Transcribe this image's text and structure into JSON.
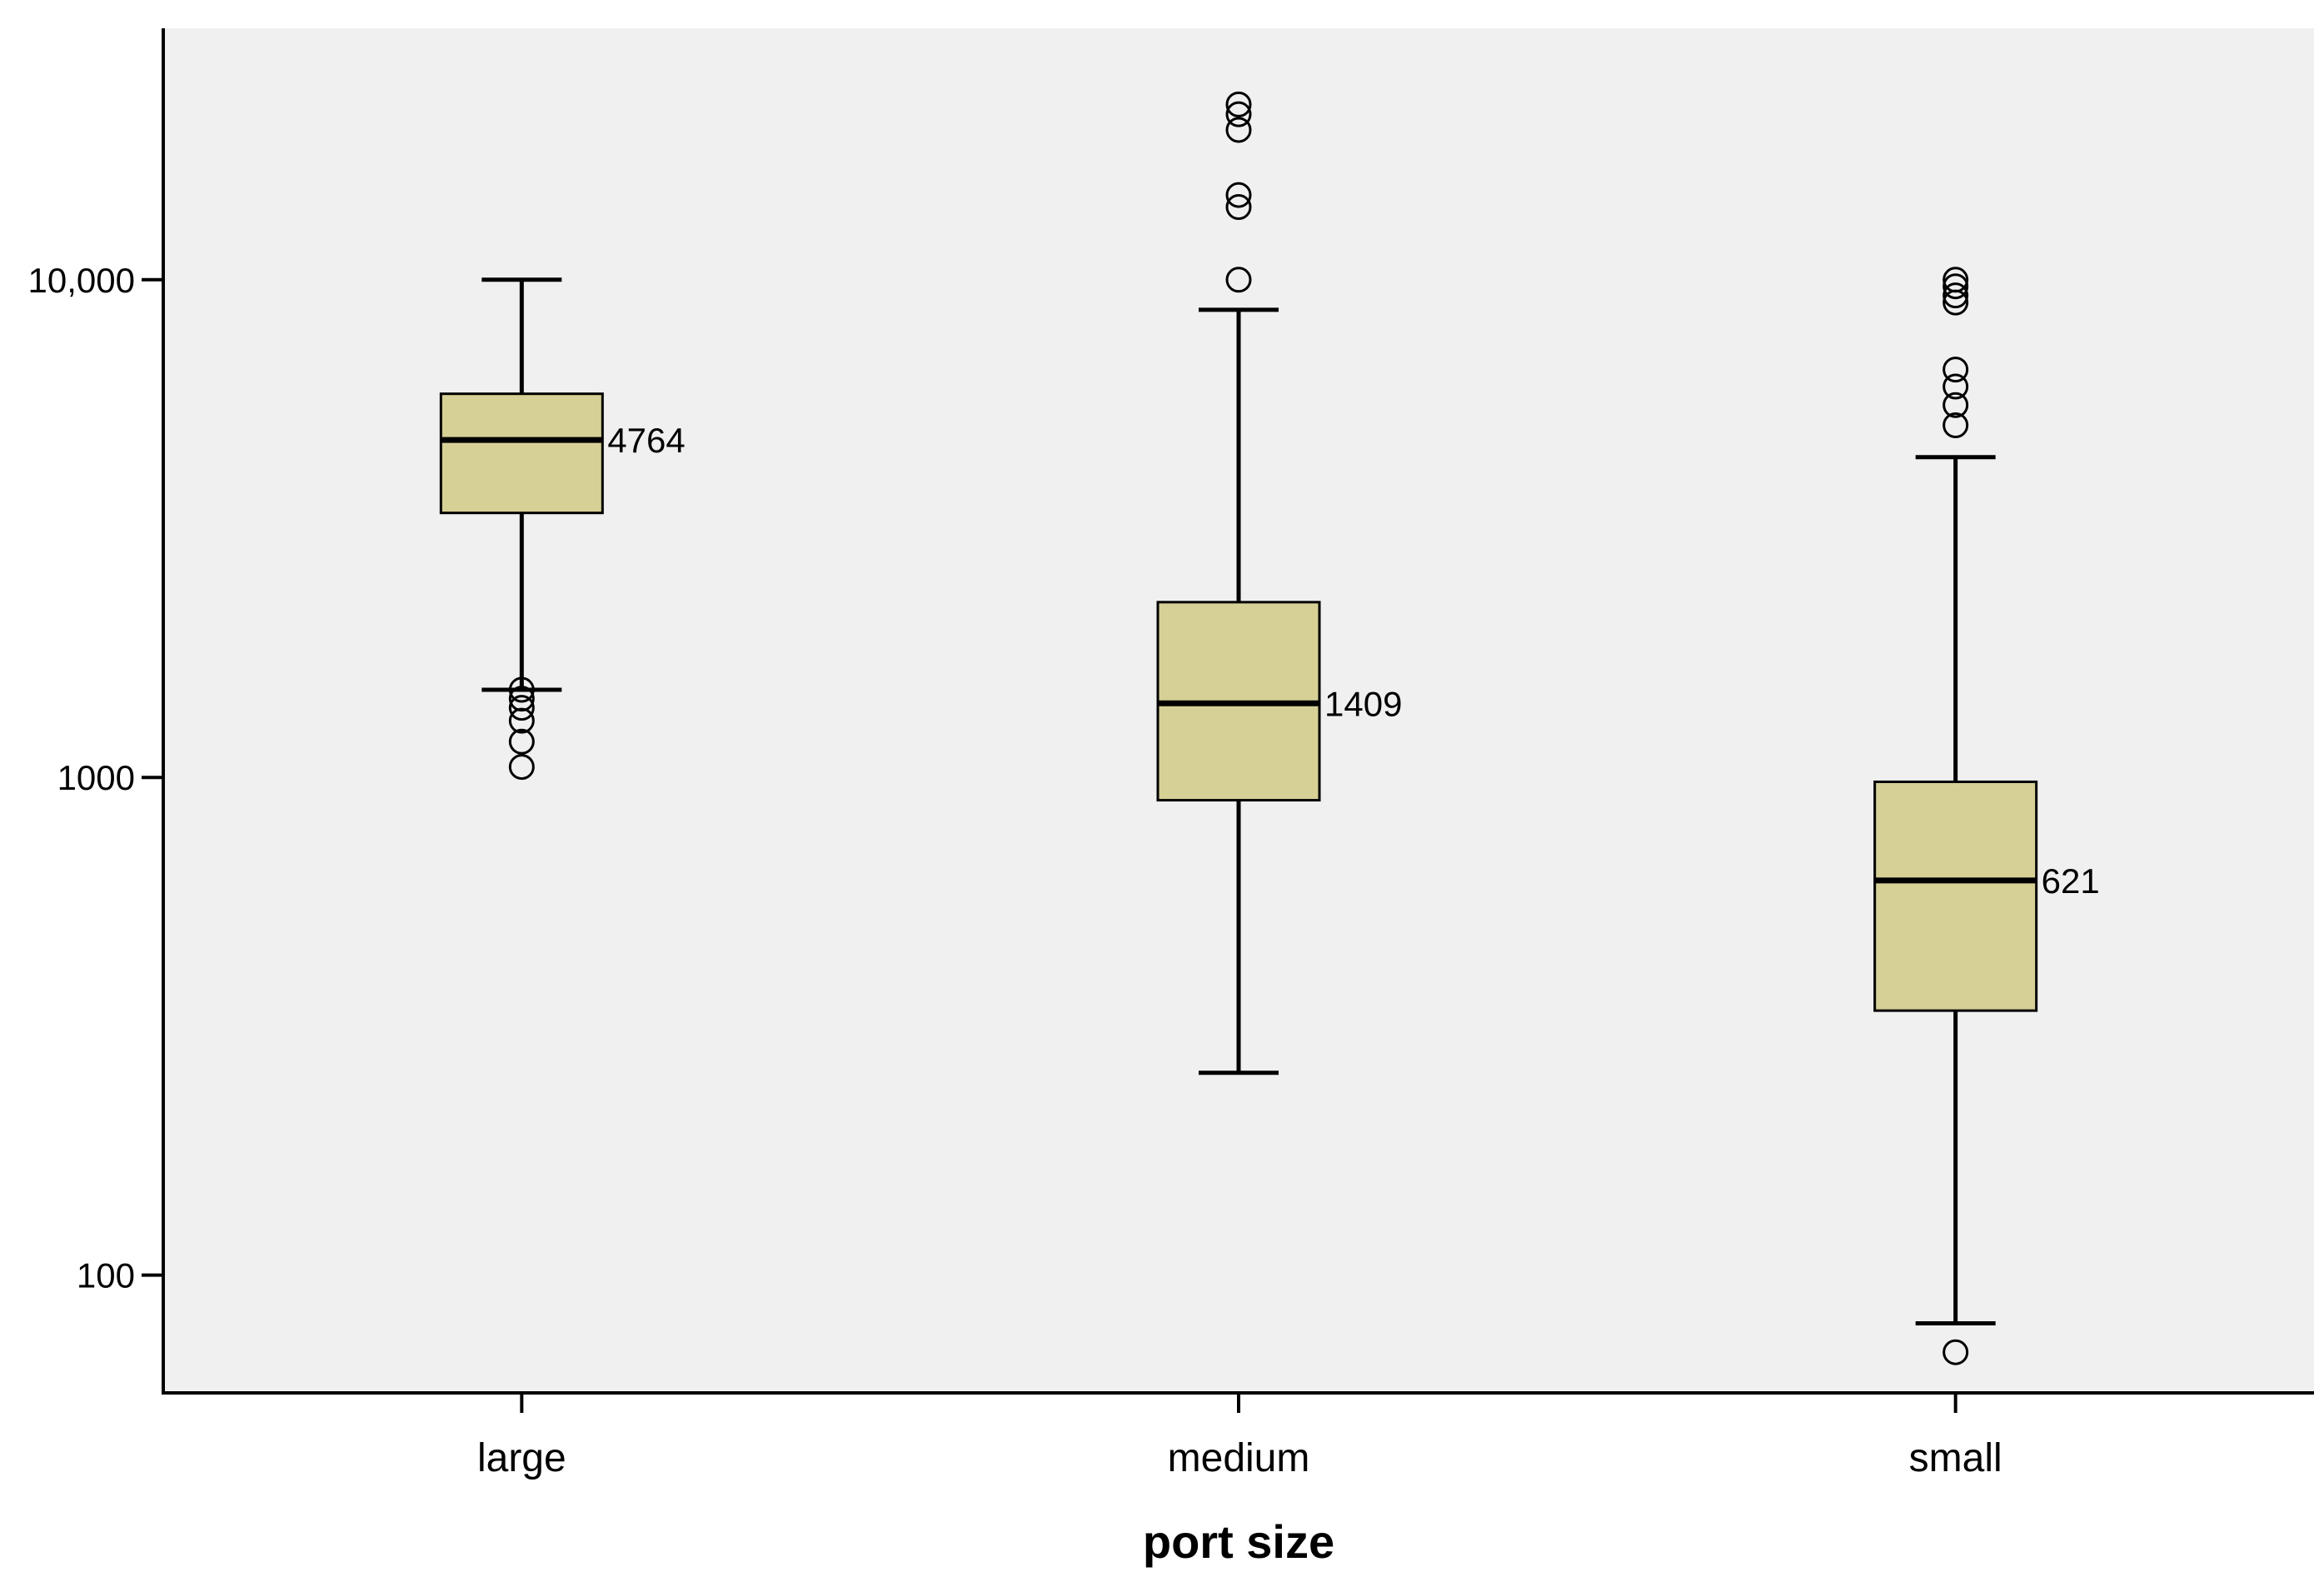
{
  "chart_data": {
    "type": "boxplot",
    "title": "",
    "xlabel": "port size",
    "ylabel": "",
    "yscale": "log",
    "ylim": [
      58,
      32000
    ],
    "yticks": [
      {
        "value": 100,
        "label": "100"
      },
      {
        "value": 1000,
        "label": "1000"
      },
      {
        "value": 10000,
        "label": "10,000"
      }
    ],
    "grid": false,
    "colors": {
      "plot_background": "#f0f0f0",
      "box_fill": "#d6d096",
      "stroke": "#000000"
    },
    "categories": [
      "large",
      "medium",
      "small"
    ],
    "boxes": [
      {
        "category": "large",
        "whisker_low": 1500,
        "q1": 3400,
        "median": 4764,
        "q3": 5900,
        "whisker_high": 10000,
        "median_label": "4764",
        "outliers": [
          1500,
          1440,
          1380,
          1300,
          1180,
          1050
        ]
      },
      {
        "category": "medium",
        "whisker_low": 255,
        "q1": 900,
        "median": 1409,
        "q3": 2250,
        "whisker_high": 8700,
        "median_label": "1409",
        "outliers": [
          10000,
          14000,
          14800,
          20000,
          21500,
          22500
        ]
      },
      {
        "category": "small",
        "whisker_low": 80,
        "q1": 340,
        "median": 621,
        "q3": 980,
        "whisker_high": 4400,
        "median_label": "621",
        "outliers": [
          70,
          5100,
          5600,
          6100,
          6600,
          9000,
          9300,
          9700,
          10000
        ]
      }
    ]
  }
}
